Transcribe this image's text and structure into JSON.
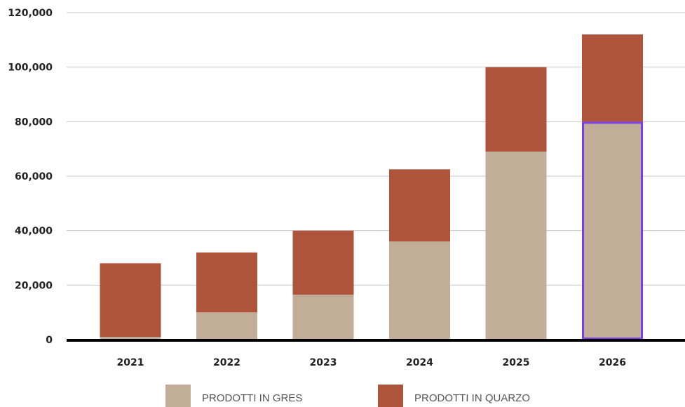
{
  "chart_data": {
    "type": "bar",
    "stacked": true,
    "categories": [
      "2021",
      "2022",
      "2023",
      "2024",
      "2025",
      "2026"
    ],
    "series": [
      {
        "name": "PRODOTTI IN GRES",
        "color": "#c2ad98",
        "values": [
          1000,
          10000,
          16500,
          36000,
          69000,
          80000
        ]
      },
      {
        "name": "PRODOTTI IN QUARZO",
        "color": "#ae533c",
        "values": [
          27000,
          22000,
          23500,
          26500,
          31000,
          32000
        ]
      }
    ],
    "yticks": [
      "0",
      "20,000",
      "40,000",
      "60,000",
      "80,000",
      "100,000",
      "120,000"
    ],
    "ylim": [
      0,
      120000
    ],
    "grid": true,
    "legend_position": "bottom",
    "highlight": {
      "category": "2026",
      "series": "PRODOTTI IN GRES",
      "color": "#7b3fe4"
    },
    "title": "",
    "xlabel": "",
    "ylabel": ""
  }
}
